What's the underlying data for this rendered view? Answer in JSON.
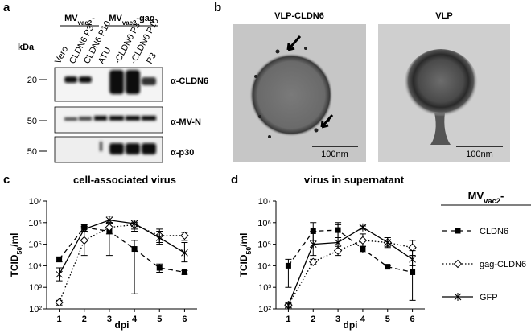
{
  "panel_a": {
    "label": "a",
    "kda_label": "kDa",
    "groups": [
      {
        "main": "MV",
        "sub": "vac2",
        "suffix": "-"
      },
      {
        "main": "MV",
        "sub": "vac2",
        "suffix": "-gag"
      }
    ],
    "lanes": [
      "Vero",
      "CLDN6 P3",
      "CLDN6 P10",
      "ATU",
      "-CLDN6 P3",
      "-CLDN6 P10",
      "P3"
    ],
    "blots": [
      {
        "marker": "20",
        "antibody": "α-CLDN6"
      },
      {
        "marker": "50",
        "antibody": "α-MV-N"
      },
      {
        "marker": "50",
        "antibody": "α-p30"
      }
    ]
  },
  "panel_b": {
    "label": "b",
    "images": [
      {
        "title": "VLP-CLDN6",
        "scale": "100nm"
      },
      {
        "title": "VLP",
        "scale": "100nm"
      }
    ]
  },
  "chart_data": [
    {
      "type": "line",
      "panel_label": "c",
      "title": "cell-associated virus",
      "x_label": "dpi",
      "y_label": {
        "main": "TCID",
        "sub": "50",
        "suffix": "/ml"
      },
      "log_y": true,
      "x": [
        1,
        2,
        3,
        4,
        5,
        6
      ],
      "xticks": [
        1,
        2,
        3,
        4,
        5,
        6
      ],
      "ylim": [
        100,
        10000000
      ],
      "yticks": [
        {
          "value": 100,
          "label": "10²"
        },
        {
          "value": 1000,
          "label": "10³"
        },
        {
          "value": 10000,
          "label": "10⁴"
        },
        {
          "value": 100000,
          "label": "10⁵"
        },
        {
          "value": 1000000,
          "label": "10⁶"
        },
        {
          "value": 10000000,
          "label": "10⁷"
        }
      ],
      "series": [
        {
          "color": "#000000",
          "dash": "dashed",
          "marker": "square",
          "values": [
            20000,
            600000,
            400000,
            60000,
            8000,
            5000
          ],
          "err_lo": [
            15000,
            400000,
            30000,
            500,
            5000,
            4000
          ],
          "err_hi": [
            25000,
            800000,
            1000000,
            150000,
            12000,
            6000
          ]
        },
        {
          "color": "#000000",
          "dash": "dotted",
          "marker": "diamond",
          "values": [
            200,
            150000,
            600000,
            800000,
            250000,
            250000
          ],
          "err_lo": [
            150,
            30000,
            300000,
            400000,
            120000,
            150000
          ],
          "err_hi": [
            250,
            500000,
            900000,
            1000000,
            500000,
            350000
          ]
        },
        {
          "color": "#000000",
          "dash": "solid",
          "marker": "asterisk",
          "values": [
            4000,
            500000,
            1300000,
            900000,
            200000,
            40000
          ],
          "err_lo": [
            2000,
            400000,
            1000000,
            500000,
            100000,
            15000
          ],
          "err_hi": [
            8000,
            600000,
            2000000,
            1300000,
            400000,
            120000
          ]
        }
      ]
    },
    {
      "type": "line",
      "panel_label": "d",
      "title": "virus in supernatant",
      "x_label": "dpi",
      "y_label": {
        "main": "TCID",
        "sub": "50",
        "suffix": "/ml"
      },
      "log_y": true,
      "x": [
        1,
        2,
        3,
        4,
        5,
        6
      ],
      "xticks": [
        1,
        2,
        3,
        4,
        5,
        6
      ],
      "ylim": [
        100,
        10000000
      ],
      "yticks": [
        {
          "value": 100,
          "label": "10²"
        },
        {
          "value": 1000,
          "label": "10³"
        },
        {
          "value": 10000,
          "label": "10⁴"
        },
        {
          "value": 100000,
          "label": "10⁵"
        },
        {
          "value": 1000000,
          "label": "10⁶"
        },
        {
          "value": 10000000,
          "label": "10⁷"
        }
      ],
      "legend_title": {
        "main": "MV",
        "sub": "vac2",
        "suffix": "-"
      },
      "series": [
        {
          "name": "CLDN6",
          "color": "#000000",
          "dash": "dashed",
          "marker": "square",
          "values": [
            10000,
            400000,
            450000,
            60000,
            9000,
            5000
          ],
          "err_lo": [
            1000,
            150000,
            200000,
            40000,
            7000,
            250
          ],
          "err_hi": [
            20000,
            1000000,
            1000000,
            80000,
            10000,
            30000
          ]
        },
        {
          "name": "gag-CLDN6",
          "color": "#000000",
          "dash": "dotted",
          "marker": "diamond",
          "values": [
            150,
            15000,
            50000,
            150000,
            120000,
            70000
          ],
          "err_lo": [
            120,
            12000,
            30000,
            80000,
            80000,
            30000
          ],
          "err_hi": [
            180,
            20000,
            80000,
            300000,
            200000,
            150000
          ]
        },
        {
          "name": "GFP",
          "color": "#000000",
          "dash": "solid",
          "marker": "asterisk",
          "values": [
            150,
            100000,
            120000,
            600000,
            120000,
            20000
          ],
          "err_lo": [
            120,
            30000,
            60000,
            500000,
            70000,
            10000
          ],
          "err_hi": [
            180,
            400000,
            800000,
            700000,
            200000,
            50000
          ]
        }
      ]
    }
  ]
}
